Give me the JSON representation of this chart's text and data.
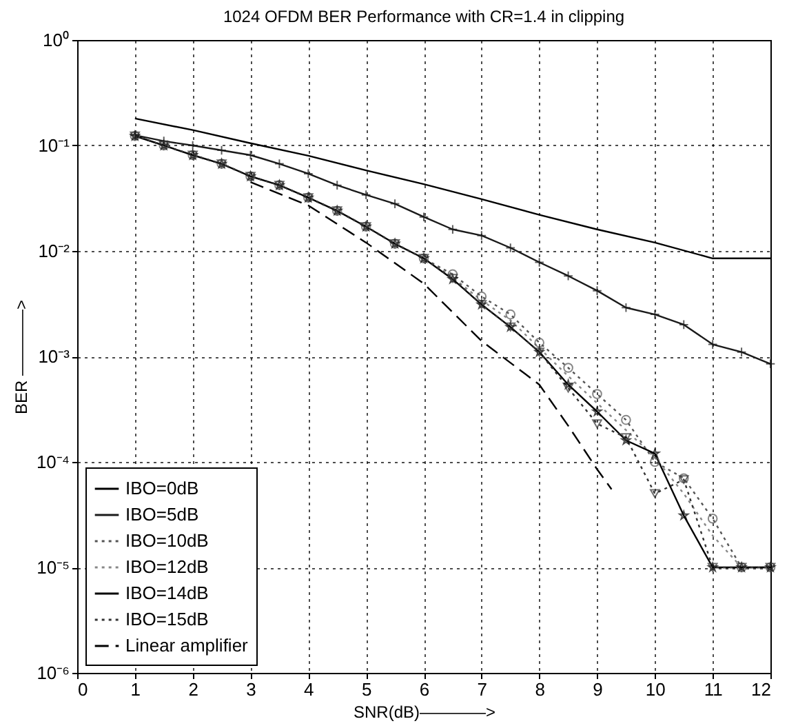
{
  "chart_data": {
    "type": "line",
    "title": "1024 OFDM BER Performance with CR=1.4 in clipping",
    "xlabel": "SNR(dB)————>",
    "ylabel": "BER ————>",
    "x": [
      1,
      1.5,
      2,
      2.5,
      3,
      3.5,
      4,
      4.5,
      5,
      5.5,
      6,
      6.5,
      7,
      7.5,
      8,
      8.5,
      9,
      9.5,
      10,
      10.5,
      11,
      11.5,
      12
    ],
    "series": [
      {
        "name": "IBO=0dB",
        "color": "#000000",
        "marker": "none",
        "line_style": "solid",
        "x": [
          1,
          2,
          3,
          4,
          5,
          6,
          7,
          8,
          9,
          10,
          11,
          12
        ],
        "values": [
          0.18,
          0.14,
          0.105,
          0.08,
          0.058,
          0.043,
          0.031,
          0.022,
          0.016,
          0.012,
          0.0085,
          0.0085
        ]
      },
      {
        "name": "IBO=5dB",
        "color": "#1a1a1a",
        "marker": "cross",
        "line_style": "solid",
        "values": [
          0.125,
          0.11,
          0.1,
          0.09,
          0.081,
          0.067,
          0.054,
          0.042,
          0.034,
          0.028,
          0.021,
          0.016,
          0.014,
          0.0107,
          0.0078,
          0.0058,
          0.0042,
          0.0029,
          0.0025,
          0.002,
          0.0013,
          0.0011,
          0.00085
        ]
      },
      {
        "name": "IBO=10dB",
        "color": "#555555",
        "marker": "circle",
        "line_style": "dotted",
        "values": [
          0.123,
          0.1,
          0.081,
          0.067,
          0.051,
          0.042,
          0.032,
          0.024,
          0.017,
          0.0117,
          0.0085,
          0.006,
          0.0037,
          0.0025,
          0.00135,
          0.00078,
          0.00044,
          0.00025,
          0.0001,
          7e-05,
          2.9e-05,
          1e-05,
          1e-05
        ]
      },
      {
        "name": "IBO=12dB",
        "color": "#888888",
        "marker": "none",
        "line_style": "dotted",
        "values": [
          0.123,
          0.1,
          0.081,
          0.067,
          0.051,
          0.042,
          0.032,
          0.024,
          0.017,
          0.0117,
          0.0085,
          0.0056,
          0.0034,
          0.0022,
          0.0012,
          0.00065,
          0.00036,
          0.0002,
          0.00011,
          5e-05,
          2e-05,
          1e-05,
          1e-05
        ]
      },
      {
        "name": "IBO=14dB",
        "color": "#000000",
        "marker": "star",
        "line_style": "solid",
        "values": [
          0.123,
          0.1,
          0.081,
          0.067,
          0.051,
          0.042,
          0.032,
          0.024,
          0.017,
          0.0117,
          0.0085,
          0.0054,
          0.0031,
          0.0019,
          0.0011,
          0.00054,
          0.0003,
          0.00016,
          0.00012,
          3.1e-05,
          1e-05,
          1e-05,
          1e-05
        ]
      },
      {
        "name": "IBO=15dB",
        "color": "#333333",
        "marker": "triangle",
        "line_style": "dotted",
        "values": [
          0.123,
          0.1,
          0.081,
          0.067,
          0.051,
          0.042,
          0.032,
          0.024,
          0.017,
          0.0117,
          0.0085,
          0.0055,
          0.0031,
          0.0019,
          0.0011,
          0.0005,
          0.00023,
          0.00017,
          5e-05,
          6.8e-05,
          1e-05,
          1e-05,
          1e-05
        ]
      },
      {
        "name": "Linear amplifier",
        "color": "#000000",
        "marker": "none",
        "line_style": "dashed",
        "x": [
          3,
          4,
          5,
          6,
          7,
          8,
          8.5,
          9,
          9.25
        ],
        "values": [
          0.045,
          0.027,
          0.012,
          0.0049,
          0.0014,
          0.00054,
          0.00022,
          8.5e-05,
          5.5e-05
        ]
      }
    ],
    "xlim": [
      0,
      12
    ],
    "xticks": [
      0,
      1,
      2,
      3,
      4,
      5,
      6,
      7,
      8,
      9,
      10,
      11,
      12
    ],
    "ylim": [
      1e-06,
      1
    ],
    "yticks": [
      {
        "value": 1,
        "label": "10⁰"
      },
      {
        "value": 0.1,
        "label": "10⁻¹"
      },
      {
        "value": 0.01,
        "label": "10⁻²"
      },
      {
        "value": 0.001,
        "label": "10⁻³"
      },
      {
        "value": 0.0001,
        "label": "10⁻⁴"
      },
      {
        "value": 1e-05,
        "label": "10⁻⁵"
      },
      {
        "value": 1e-06,
        "label": "10⁻⁶"
      }
    ],
    "log": "y",
    "grid": true,
    "legend": "bottom left"
  }
}
